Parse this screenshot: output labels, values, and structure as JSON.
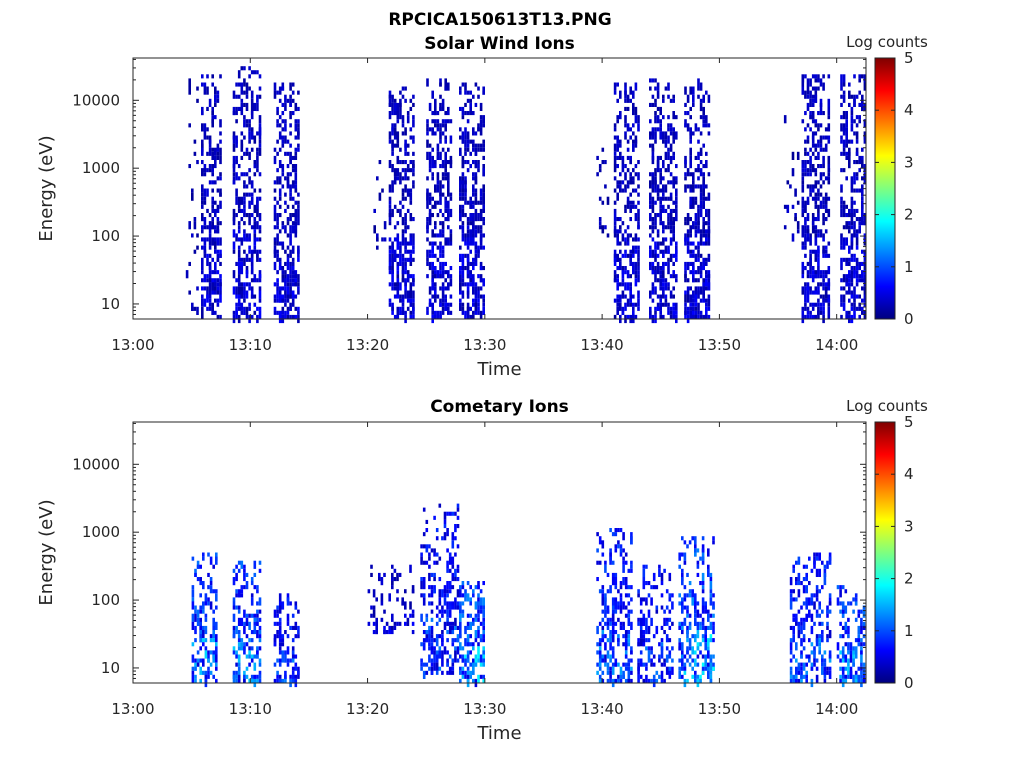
{
  "figure": {
    "title": "RPCICA150613T13.PNG"
  },
  "colors": {
    "axis": "#262626",
    "colormap": [
      "#00007f",
      "#0000ff",
      "#007fff",
      "#00ffff",
      "#7fff7f",
      "#ffff00",
      "#ff7f00",
      "#ff0000",
      "#7f0000"
    ]
  },
  "chart_data": [
    {
      "type": "heatmap",
      "title": "Solar Wind Ions",
      "xlabel": "Time",
      "ylabel": "Energy (eV)",
      "x_tick_labels": [
        "13:00",
        "13:10",
        "13:20",
        "13:30",
        "13:40",
        "13:50",
        "14:00"
      ],
      "x_ticks_min": [
        0,
        10,
        20,
        30,
        40,
        50,
        60
      ],
      "xlim_min": [
        0,
        62.5
      ],
      "y_scale": "log",
      "y_tick_labels": [
        "10",
        "100",
        "1000",
        "10000"
      ],
      "y_ticks": [
        10,
        100,
        1000,
        10000
      ],
      "ylim": [
        6,
        42000
      ],
      "colorbar": {
        "label": "Log counts",
        "ticks": [
          0,
          1,
          2,
          3,
          4,
          5
        ],
        "range": [
          0,
          5
        ]
      },
      "bursts": [
        {
          "t_start": 4.5,
          "t_end": 5.5,
          "e_min": 8,
          "e_max": 20000,
          "log_level": 0.2,
          "density": 0.15
        },
        {
          "t_start": 5.8,
          "t_end": 7.5,
          "e_min": 6,
          "e_max": 25000,
          "log_level": 0.3,
          "density": 0.6
        },
        {
          "t_start": 8.5,
          "t_end": 10.8,
          "e_min": 6,
          "e_max": 30000,
          "log_level": 0.3,
          "density": 0.55
        },
        {
          "t_start": 12.0,
          "t_end": 14.0,
          "e_min": 6,
          "e_max": 18000,
          "log_level": 0.3,
          "density": 0.6
        },
        {
          "t_start": 20.5,
          "t_end": 21.5,
          "e_min": 60,
          "e_max": 3000,
          "log_level": 0.2,
          "density": 0.15
        },
        {
          "t_start": 21.8,
          "t_end": 23.8,
          "e_min": 6,
          "e_max": 15000,
          "log_level": 0.3,
          "density": 0.6
        },
        {
          "t_start": 25.0,
          "t_end": 27.2,
          "e_min": 6,
          "e_max": 22000,
          "log_level": 0.3,
          "density": 0.55
        },
        {
          "t_start": 27.8,
          "t_end": 30.0,
          "e_min": 6,
          "e_max": 18000,
          "log_level": 0.3,
          "density": 0.6
        },
        {
          "t_start": 39.5,
          "t_end": 40.5,
          "e_min": 80,
          "e_max": 2000,
          "log_level": 0.2,
          "density": 0.15
        },
        {
          "t_start": 41.0,
          "t_end": 43.0,
          "e_min": 6,
          "e_max": 18000,
          "log_level": 0.3,
          "density": 0.6
        },
        {
          "t_start": 44.0,
          "t_end": 46.3,
          "e_min": 6,
          "e_max": 22000,
          "log_level": 0.3,
          "density": 0.55
        },
        {
          "t_start": 47.0,
          "t_end": 49.2,
          "e_min": 6,
          "e_max": 20000,
          "log_level": 0.3,
          "density": 0.6
        },
        {
          "t_start": 55.5,
          "t_end": 56.8,
          "e_min": 100,
          "e_max": 6000,
          "log_level": 0.2,
          "density": 0.15
        },
        {
          "t_start": 57.0,
          "t_end": 59.3,
          "e_min": 6,
          "e_max": 25000,
          "log_level": 0.3,
          "density": 0.6
        },
        {
          "t_start": 60.3,
          "t_end": 62.3,
          "e_min": 6,
          "e_max": 25000,
          "log_level": 0.3,
          "density": 0.6
        }
      ]
    },
    {
      "type": "heatmap",
      "title": "Cometary Ions",
      "xlabel": "Time",
      "ylabel": "Energy (eV)",
      "x_tick_labels": [
        "13:00",
        "13:10",
        "13:20",
        "13:30",
        "13:40",
        "13:50",
        "14:00"
      ],
      "x_ticks_min": [
        0,
        10,
        20,
        30,
        40,
        50,
        60
      ],
      "xlim_min": [
        0,
        62.5
      ],
      "y_scale": "log",
      "y_tick_labels": [
        "10",
        "100",
        "1000",
        "10000"
      ],
      "y_ticks": [
        10,
        100,
        1000,
        10000
      ],
      "ylim": [
        6,
        42000
      ],
      "colorbar": {
        "label": "Log counts",
        "ticks": [
          0,
          1,
          2,
          3,
          4,
          5
        ],
        "range": [
          0,
          5
        ]
      },
      "bursts": [
        {
          "t_start": 5.0,
          "t_end": 7.0,
          "e_min": 6,
          "e_max": 500,
          "log_level": 0.8,
          "density": 0.55
        },
        {
          "t_start": 8.5,
          "t_end": 10.8,
          "e_min": 6,
          "e_max": 400,
          "log_level": 0.8,
          "density": 0.5
        },
        {
          "t_start": 12.0,
          "t_end": 14.2,
          "e_min": 6,
          "e_max": 120,
          "log_level": 0.6,
          "density": 0.5
        },
        {
          "t_start": 20.0,
          "t_end": 23.8,
          "e_min": 30,
          "e_max": 350,
          "log_level": 0.3,
          "density": 0.3
        },
        {
          "t_start": 24.5,
          "t_end": 27.8,
          "e_min": 8,
          "e_max": 2500,
          "log_level": 0.6,
          "density": 0.45
        },
        {
          "t_start": 27.8,
          "t_end": 30.0,
          "e_min": 6,
          "e_max": 200,
          "log_level": 0.9,
          "density": 0.6
        },
        {
          "t_start": 39.5,
          "t_end": 42.5,
          "e_min": 6,
          "e_max": 1200,
          "log_level": 0.7,
          "density": 0.45
        },
        {
          "t_start": 43.0,
          "t_end": 46.0,
          "e_min": 6,
          "e_max": 350,
          "log_level": 0.6,
          "density": 0.5
        },
        {
          "t_start": 46.5,
          "t_end": 49.5,
          "e_min": 6,
          "e_max": 900,
          "log_level": 0.9,
          "density": 0.5
        },
        {
          "t_start": 56.0,
          "t_end": 59.5,
          "e_min": 6,
          "e_max": 500,
          "log_level": 0.7,
          "density": 0.45
        },
        {
          "t_start": 60.0,
          "t_end": 62.3,
          "e_min": 6,
          "e_max": 180,
          "log_level": 0.8,
          "density": 0.55
        }
      ]
    }
  ]
}
